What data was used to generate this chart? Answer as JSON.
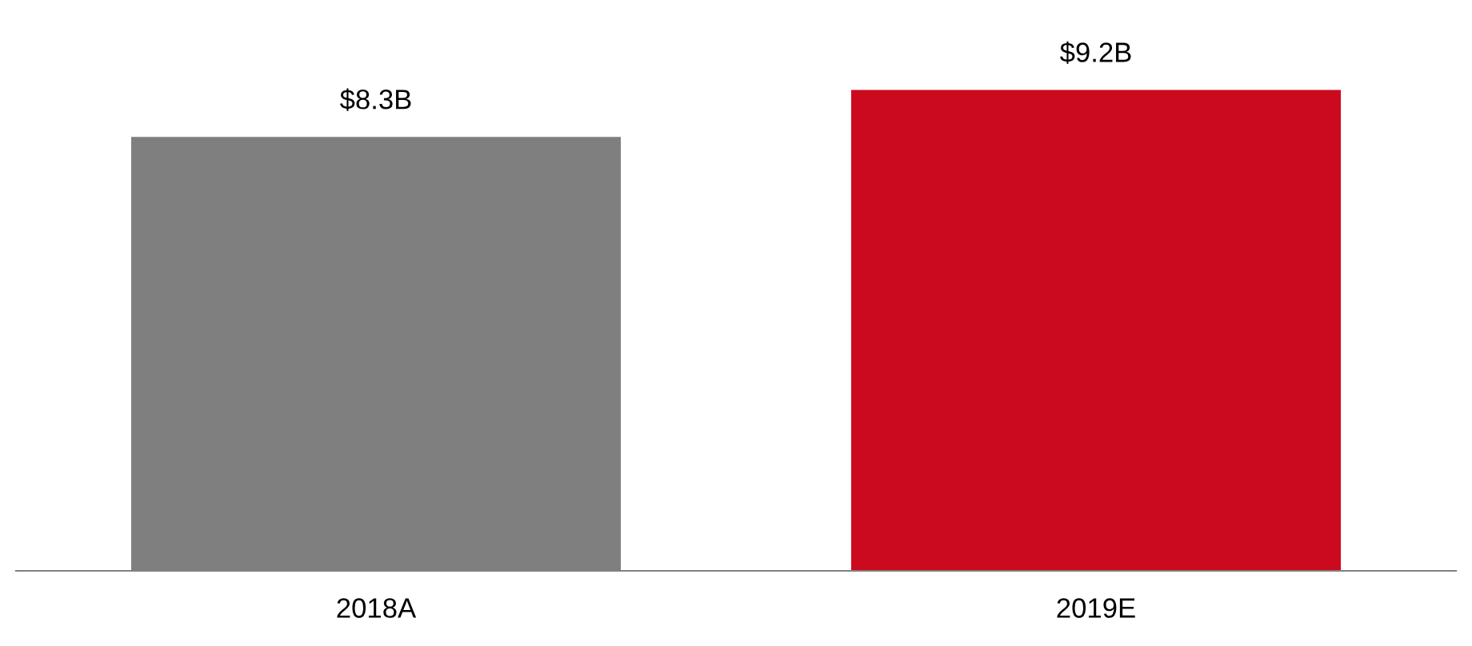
{
  "chart_data": {
    "type": "bar",
    "categories": [
      "2018A",
      "2019E"
    ],
    "values": [
      8.3,
      9.2
    ],
    "colors": [
      "#7f7f7f",
      "#cc0a1e"
    ],
    "value_labels": [
      "$8.3B",
      "$9.2B"
    ],
    "grid": false,
    "legend": false
  }
}
